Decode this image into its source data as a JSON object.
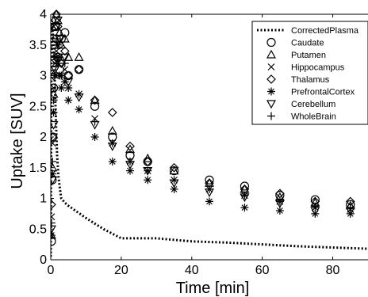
{
  "chart_data": {
    "type": "scatter",
    "title": "",
    "xlabel": "Time [min]",
    "ylabel": "Uptake [SUV]",
    "xlim": [
      0,
      90
    ],
    "ylim": [
      0,
      4
    ],
    "xticks": [
      0,
      20,
      40,
      60,
      80
    ],
    "xtick_labels": [
      "0",
      "20",
      "40",
      "60",
      "80"
    ],
    "yticks": [
      0,
      0.5,
      1,
      1.5,
      2,
      2.5,
      3,
      3.5,
      4
    ],
    "ytick_labels": [
      "0",
      "0.5",
      "1",
      "1.5",
      "2",
      "2.5",
      "3",
      "3.5",
      "4"
    ],
    "grid": false,
    "legend_position": "top-right",
    "series": [
      {
        "name": "CorrectedPlasma",
        "marker": "dotted-line",
        "color": "#000000",
        "x": [
          0,
          0.2,
          0.4,
          0.6,
          0.8,
          1.0,
          1.2,
          1.5,
          1.8,
          2.2,
          2.6,
          3.0,
          4,
          5,
          7,
          10,
          15,
          20,
          30,
          40,
          50,
          60,
          70,
          80,
          90
        ],
        "y": [
          0.05,
          3.2,
          3.9,
          3.7,
          3.5,
          3.2,
          2.8,
          2.2,
          1.7,
          1.35,
          1.15,
          1.0,
          0.93,
          0.88,
          0.8,
          0.68,
          0.5,
          0.35,
          0.35,
          0.3,
          0.28,
          0.25,
          0.22,
          0.2,
          0.18
        ]
      },
      {
        "name": "Caudate",
        "marker": "circle",
        "x": [
          0.2,
          0.4,
          0.6,
          0.8,
          1.0,
          1.3,
          1.6,
          2.0,
          2.5,
          3.0,
          4.0,
          5.0,
          8.0,
          12.5,
          17.5,
          22.5,
          27.5,
          35,
          45,
          55,
          65,
          75,
          85
        ],
        "y": [
          0.3,
          1.3,
          2.0,
          2.8,
          3.5,
          3.8,
          3.6,
          3.3,
          3.1,
          3.6,
          3.7,
          3.0,
          3.1,
          2.5,
          2.0,
          1.7,
          1.6,
          1.45,
          1.3,
          1.2,
          1.05,
          0.98,
          0.9
        ]
      },
      {
        "name": "Putamen",
        "marker": "triangle-up",
        "x": [
          0.2,
          0.5,
          0.8,
          1.2,
          1.6,
          2.0,
          2.5,
          3.0,
          4.0,
          5.0,
          8.0,
          12.5,
          17.5,
          22.5,
          27.5,
          35,
          45,
          55,
          65,
          75,
          85
        ],
        "y": [
          0.4,
          1.5,
          2.7,
          3.8,
          4.0,
          3.9,
          3.7,
          3.5,
          3.6,
          3.3,
          3.3,
          2.6,
          2.1,
          1.8,
          1.65,
          1.45,
          1.25,
          1.15,
          1.02,
          0.93,
          0.88
        ]
      },
      {
        "name": "Hippocampus",
        "marker": "x",
        "x": [
          0.2,
          0.5,
          0.8,
          1.2,
          1.6,
          2.0,
          2.5,
          3.0,
          4.0,
          5.0,
          8.0,
          12.5,
          17.5,
          22.5,
          27.5,
          35,
          45,
          55,
          65,
          75,
          85
        ],
        "y": [
          0.7,
          1.9,
          2.8,
          3.2,
          3.4,
          3.5,
          3.3,
          3.0,
          3.1,
          2.8,
          2.7,
          2.3,
          1.9,
          1.6,
          1.45,
          1.3,
          1.15,
          1.05,
          0.95,
          0.85,
          0.82
        ]
      },
      {
        "name": "Thalamus",
        "marker": "diamond",
        "x": [
          0.2,
          0.5,
          0.8,
          1.2,
          1.6,
          2.0,
          2.5,
          3.0,
          4.0,
          5.0,
          8.0,
          12.5,
          17.5,
          22.5,
          27.5,
          35,
          45,
          55,
          65,
          75,
          85
        ],
        "y": [
          0.9,
          2.0,
          3.0,
          3.9,
          4.0,
          3.8,
          3.5,
          3.2,
          3.4,
          3.0,
          3.1,
          2.6,
          2.4,
          1.85,
          1.6,
          1.5,
          1.25,
          1.15,
          1.08,
          0.95,
          0.95
        ]
      },
      {
        "name": "PrefrontalCortex",
        "marker": "asterisk",
        "x": [
          0.2,
          0.5,
          0.8,
          1.2,
          1.6,
          2.0,
          2.5,
          3.0,
          4.0,
          5.0,
          8.0,
          12.5,
          17.5,
          22.5,
          27.5,
          35,
          45,
          55,
          65,
          75,
          85
        ],
        "y": [
          0.4,
          1.4,
          2.4,
          3.0,
          3.3,
          3.2,
          3.0,
          2.8,
          2.9,
          2.6,
          2.45,
          2.0,
          1.6,
          1.45,
          1.3,
          1.15,
          0.95,
          0.85,
          0.8,
          0.75,
          0.75
        ]
      },
      {
        "name": "Cerebellum",
        "marker": "triangle-down",
        "x": [
          0.2,
          0.5,
          0.8,
          1.2,
          1.6,
          2.0,
          2.5,
          3.0,
          4.0,
          5.0,
          8.0,
          12.5,
          17.5,
          22.5,
          27.5,
          35,
          45,
          55,
          65,
          75,
          85
        ],
        "y": [
          0.5,
          1.3,
          2.2,
          3.1,
          3.8,
          3.9,
          3.6,
          3.2,
          3.3,
          2.9,
          2.65,
          2.2,
          1.85,
          1.55,
          1.45,
          1.25,
          1.1,
          1.02,
          0.92,
          0.8,
          0.8
        ]
      },
      {
        "name": "WholeBrain",
        "marker": "plus",
        "x": [
          0.2,
          0.5,
          0.8,
          1.2,
          1.6,
          2.0,
          2.5,
          3.0,
          4.0,
          5.0,
          8.0,
          12.5,
          17.5,
          22.5,
          27.5,
          35,
          45,
          55,
          65,
          75,
          85
        ],
        "y": [
          0.6,
          1.6,
          2.6,
          3.3,
          3.6,
          3.5,
          3.3,
          3.0,
          3.2,
          2.8,
          2.7,
          2.25,
          1.9,
          1.6,
          1.45,
          1.3,
          1.15,
          1.05,
          0.95,
          0.87,
          0.85
        ]
      }
    ]
  }
}
